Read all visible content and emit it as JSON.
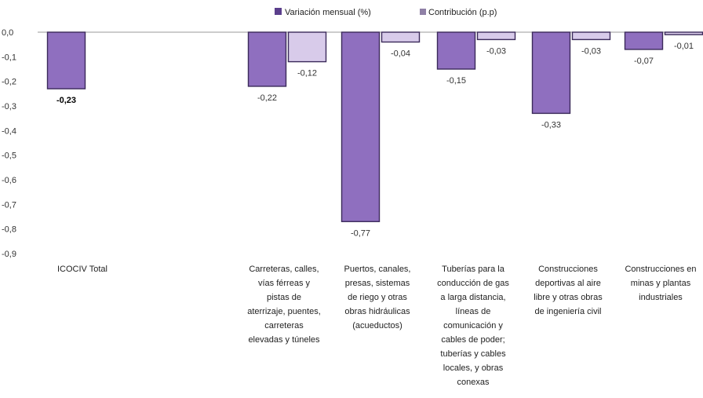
{
  "chart_data": {
    "type": "bar",
    "title": "",
    "xlabel": "",
    "ylabel": "",
    "ylim": [
      -0.9,
      0.0
    ],
    "yticks": [
      "0,0",
      "-0,1",
      "-0,2",
      "-0,3",
      "-0,4",
      "-0,5",
      "-0,6",
      "-0,7",
      "-0,8",
      "-0,9"
    ],
    "grid": false,
    "legend_position": "top",
    "categories": [
      [
        "ICOCIV Total"
      ],
      [
        "Carreteras, calles,",
        "vías férreas y",
        "pistas de",
        "aterrizaje, puentes,",
        "carreteras",
        "elevadas y túneles"
      ],
      [
        "Puertos, canales,",
        "presas, sistemas",
        "de riego y otras",
        "obras hidráulicas",
        "(acueductos)"
      ],
      [
        "Tuberías para la",
        "conducción de gas",
        "a larga distancia,",
        "líneas de",
        "comunicación y",
        "cables de poder;",
        "tuberías y cables",
        "locales, y obras",
        "conexas"
      ],
      [
        "Construcciones",
        "deportivas al aire",
        "libre y otras obras",
        "de ingeniería civil"
      ],
      [
        "Construcciones  en",
        "minas y plantas",
        "industriales"
      ]
    ],
    "series": [
      {
        "name": "Variación mensual (%)",
        "color": "#8f6fbf",
        "stroke": "#3b2a5a",
        "values": [
          -0.23,
          -0.22,
          -0.77,
          -0.15,
          -0.33,
          -0.07
        ],
        "labels": [
          "-0,23",
          "-0,22",
          "-0,77",
          "-0,15",
          "-0,33",
          "-0,07"
        ],
        "bold_label_index": 0
      },
      {
        "name": "Contribución (p.p)",
        "color": "#d8cbea",
        "stroke": "#3b2a5a",
        "values": [
          null,
          -0.12,
          -0.04,
          -0.03,
          -0.03,
          -0.01
        ],
        "labels": [
          null,
          "-0,12",
          "-0,04",
          "-0,03",
          "-0,03",
          "-0,01"
        ]
      }
    ],
    "legend_swatch_colors": [
      "#5b3f8c",
      "#8f80a6"
    ]
  }
}
